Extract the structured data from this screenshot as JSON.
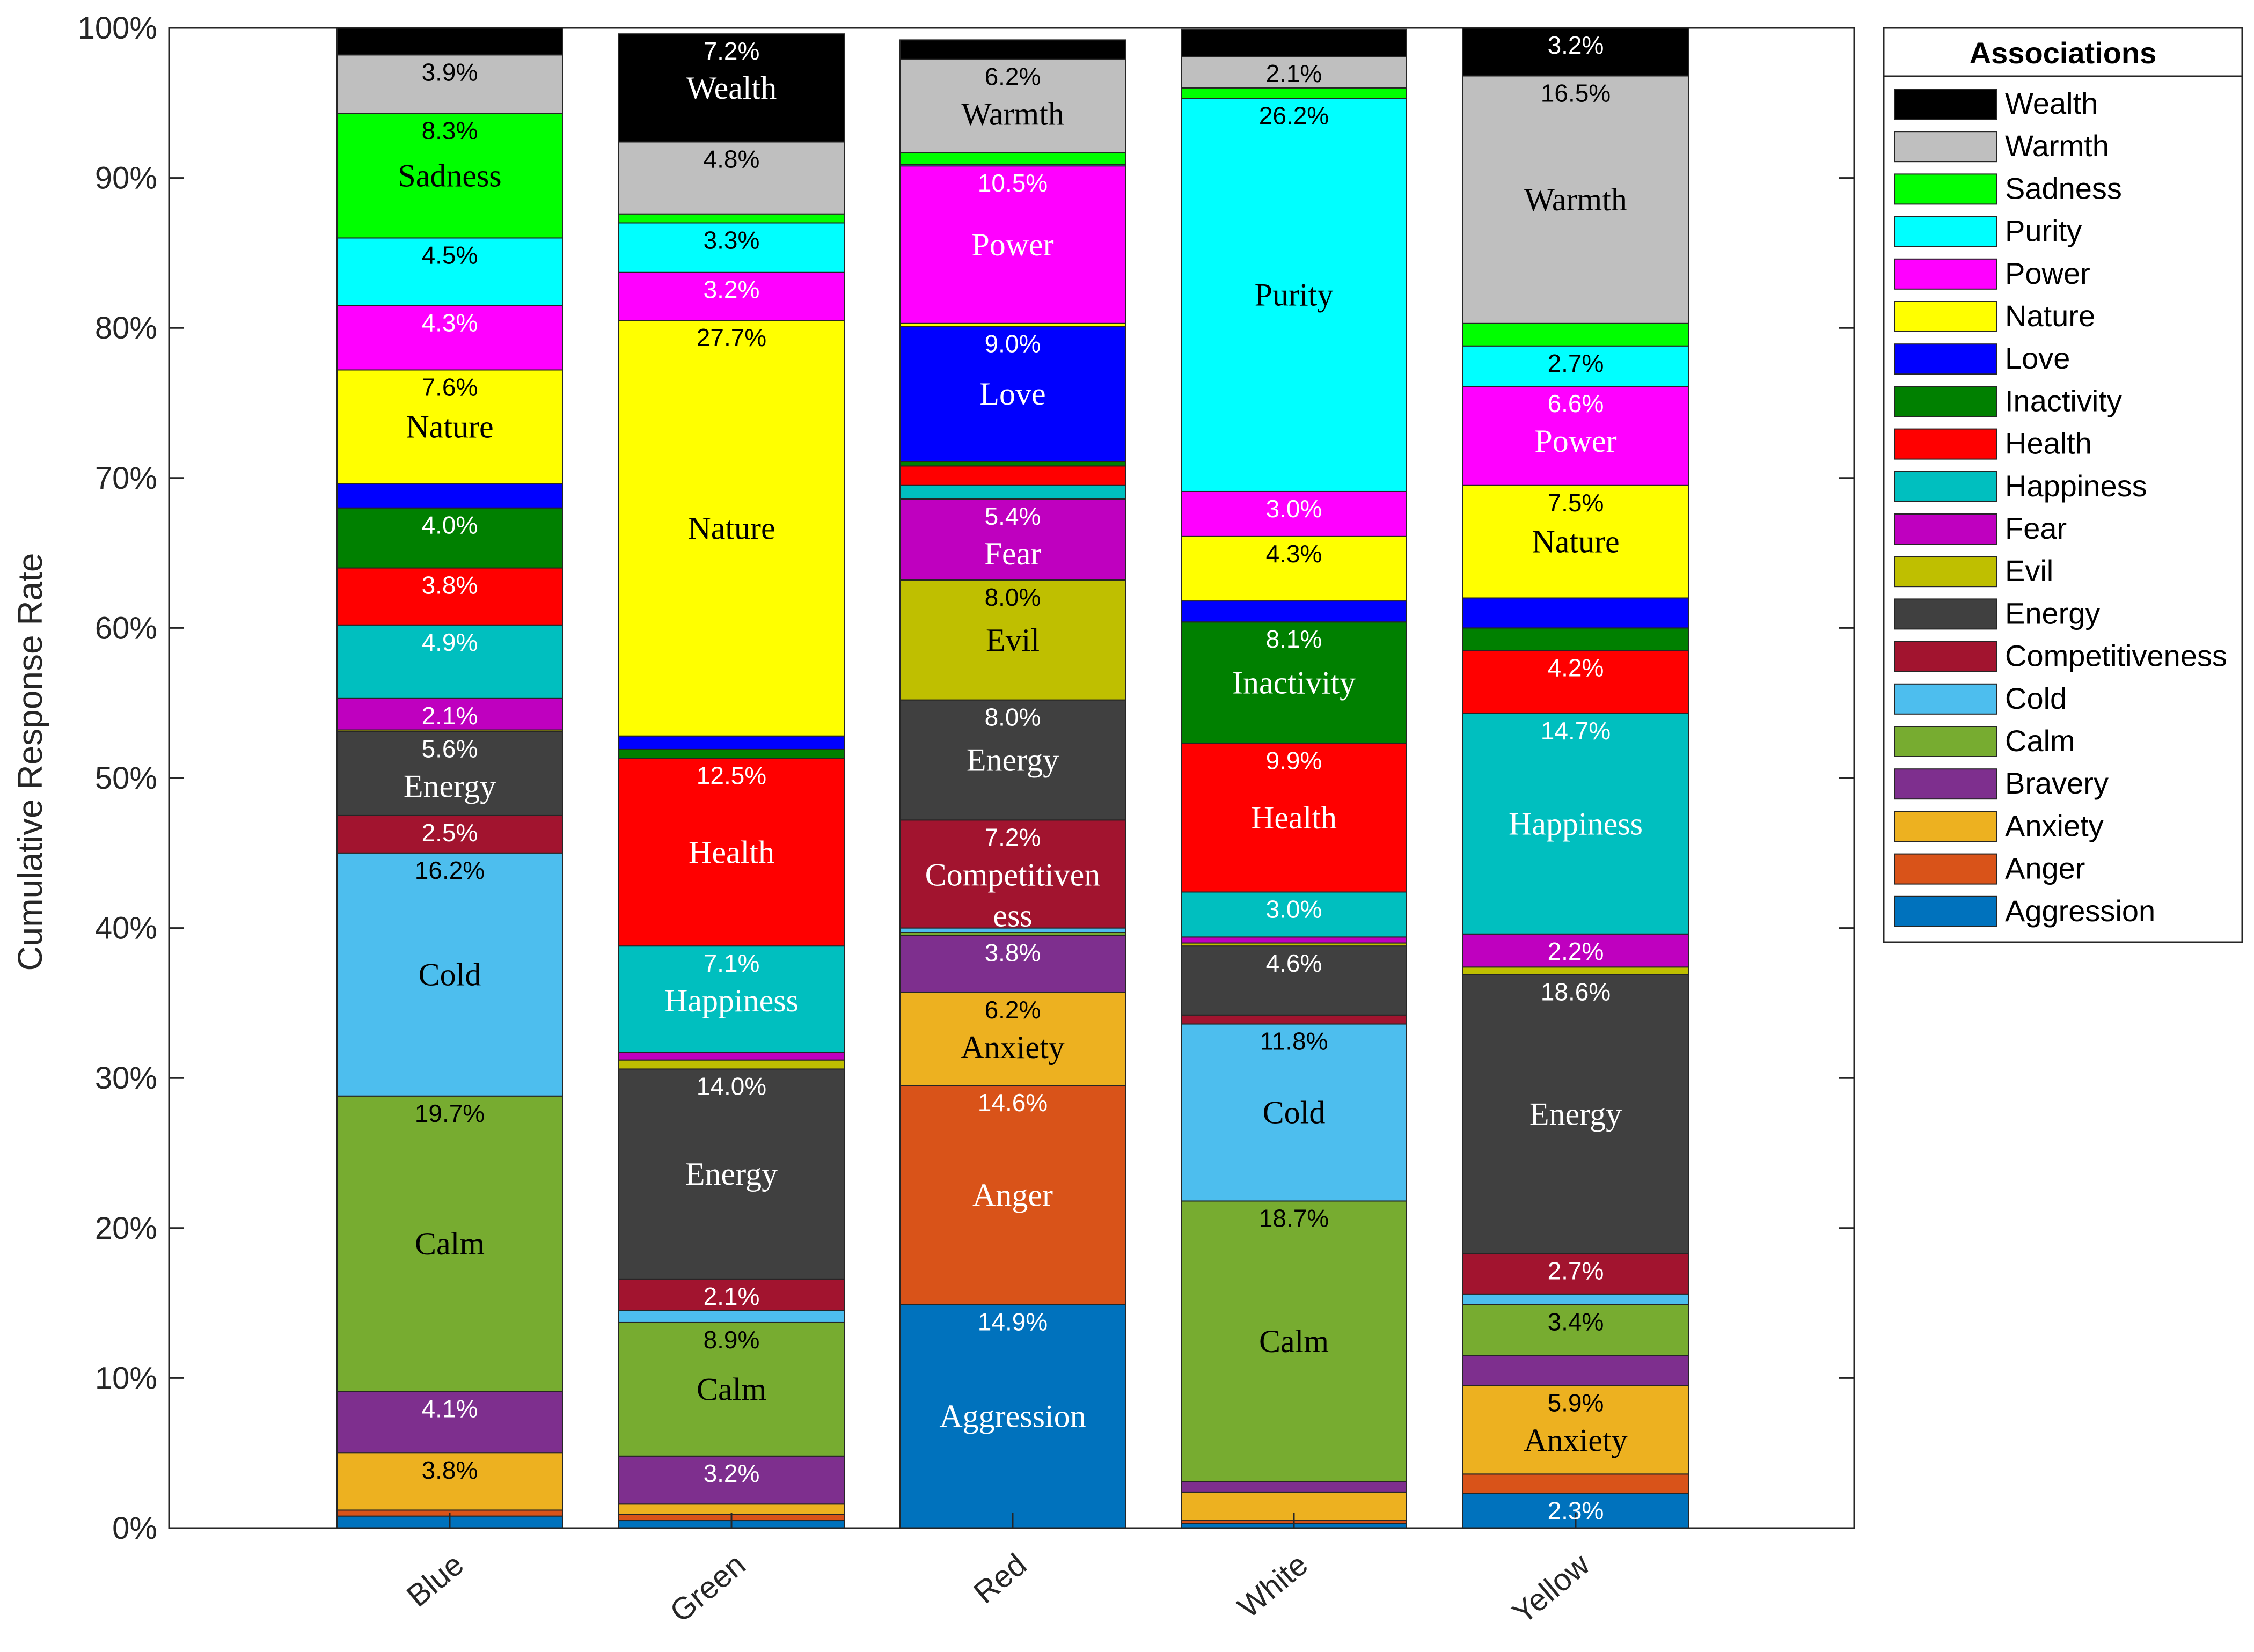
{
  "chart_data": {
    "type": "bar",
    "stacked": true,
    "title": "",
    "xlabel": "",
    "ylabel": "Cumulative Response Rate",
    "ylim": [
      0,
      100
    ],
    "yticks": [
      "0%",
      "10%",
      "20%",
      "30%",
      "40%",
      "50%",
      "60%",
      "70%",
      "80%",
      "90%",
      "100%"
    ],
    "categories": [
      "Blue",
      "Green",
      "Red",
      "White",
      "Yellow"
    ],
    "legend": {
      "title": "Associations",
      "position": "right-outside"
    },
    "grid": false,
    "series": [
      {
        "name": "Aggression",
        "color": "#0072BD",
        "values": [
          0.8,
          0.5,
          14.9,
          0.3,
          2.3
        ]
      },
      {
        "name": "Anger",
        "color": "#D95319",
        "values": [
          0.4,
          0.4,
          14.6,
          0.2,
          1.3
        ]
      },
      {
        "name": "Anxiety",
        "color": "#EDB120",
        "values": [
          3.8,
          0.7,
          6.2,
          1.9,
          5.9
        ]
      },
      {
        "name": "Bravery",
        "color": "#7E2F8E",
        "values": [
          4.1,
          3.2,
          3.8,
          0.7,
          2.0
        ]
      },
      {
        "name": "Calm",
        "color": "#77AC30",
        "values": [
          19.7,
          8.9,
          0.2,
          18.7,
          3.4
        ]
      },
      {
        "name": "Cold",
        "color": "#4DBEEE",
        "values": [
          16.2,
          0.8,
          0.3,
          11.8,
          0.7
        ]
      },
      {
        "name": "Competitiveness",
        "color": "#A2142F",
        "values": [
          2.5,
          2.1,
          7.2,
          0.6,
          2.7
        ]
      },
      {
        "name": "Energy",
        "color": "#404040",
        "values": [
          5.6,
          14.0,
          8.0,
          4.6,
          18.6
        ]
      },
      {
        "name": "Evil",
        "color": "#BFBF00",
        "values": [
          0.1,
          0.6,
          8.0,
          0.2,
          0.5
        ]
      },
      {
        "name": "Fear",
        "color": "#BF00BF",
        "values": [
          2.1,
          0.5,
          5.4,
          0.4,
          2.2
        ]
      },
      {
        "name": "Happiness",
        "color": "#00BFBF",
        "values": [
          4.9,
          7.1,
          0.9,
          3.0,
          14.7
        ]
      },
      {
        "name": "Health",
        "color": "#FF0000",
        "values": [
          3.8,
          12.5,
          1.3,
          9.9,
          4.2
        ]
      },
      {
        "name": "Inactivity",
        "color": "#008000",
        "values": [
          4.0,
          0.6,
          0.3,
          8.1,
          1.5
        ]
      },
      {
        "name": "Love",
        "color": "#0000FF",
        "values": [
          1.6,
          0.9,
          9.0,
          1.4,
          2.0
        ]
      },
      {
        "name": "Nature",
        "color": "#FFFF00",
        "values": [
          7.6,
          27.7,
          0.2,
          4.3,
          7.5
        ]
      },
      {
        "name": "Power",
        "color": "#FF00FF",
        "values": [
          4.3,
          3.2,
          10.5,
          3.0,
          6.6
        ]
      },
      {
        "name": "Purity",
        "color": "#00FFFF",
        "values": [
          4.5,
          3.3,
          0.1,
          26.2,
          2.7
        ]
      },
      {
        "name": "Sadness",
        "color": "#00FF00",
        "values": [
          8.3,
          0.6,
          0.8,
          0.7,
          1.5
        ]
      },
      {
        "name": "Warmth",
        "color": "#BFBFBF",
        "values": [
          3.9,
          4.8,
          6.2,
          2.1,
          16.5
        ]
      },
      {
        "name": "Wealth",
        "color": "#000000",
        "values": [
          1.8,
          7.2,
          1.3,
          1.8,
          3.2
        ]
      }
    ],
    "segment_labels": [
      {
        "category": "Blue",
        "series": "Wealth",
        "pct": "",
        "name": ""
      },
      {
        "category": "Blue",
        "series": "Warmth",
        "pct": "3.9%",
        "name": ""
      },
      {
        "category": "Blue",
        "series": "Sadness",
        "pct": "8.3%",
        "name": "Sadness"
      },
      {
        "category": "Blue",
        "series": "Purity",
        "pct": "4.5%",
        "name": ""
      },
      {
        "category": "Blue",
        "series": "Power",
        "pct": "4.3%",
        "name": ""
      },
      {
        "category": "Blue",
        "series": "Nature",
        "pct": "7.6%",
        "name": "Nature"
      },
      {
        "category": "Blue",
        "series": "Inactivity",
        "pct": "4.0%",
        "name": ""
      },
      {
        "category": "Blue",
        "series": "Health",
        "pct": "3.8%",
        "name": ""
      },
      {
        "category": "Blue",
        "series": "Happiness",
        "pct": "4.9%",
        "name": ""
      },
      {
        "category": "Blue",
        "series": "Fear",
        "pct": "2.1%",
        "name": ""
      },
      {
        "category": "Blue",
        "series": "Energy",
        "pct": "5.6%",
        "name": "Energy"
      },
      {
        "category": "Blue",
        "series": "Competitiveness",
        "pct": "2.5%",
        "name": ""
      },
      {
        "category": "Blue",
        "series": "Cold",
        "pct": "16.2%",
        "name": "Cold"
      },
      {
        "category": "Blue",
        "series": "Calm",
        "pct": "19.7%",
        "name": "Calm"
      },
      {
        "category": "Blue",
        "series": "Bravery",
        "pct": "4.1%",
        "name": ""
      },
      {
        "category": "Blue",
        "series": "Anxiety",
        "pct": "3.8%",
        "name": ""
      },
      {
        "category": "Green",
        "series": "Wealth",
        "pct": "7.2%",
        "name": "Wealth"
      },
      {
        "category": "Green",
        "series": "Warmth",
        "pct": "4.8%",
        "name": ""
      },
      {
        "category": "Green",
        "series": "Purity",
        "pct": "3.3%",
        "name": ""
      },
      {
        "category": "Green",
        "series": "Power",
        "pct": "3.2%",
        "name": ""
      },
      {
        "category": "Green",
        "series": "Nature",
        "pct": "27.7%",
        "name": "Nature"
      },
      {
        "category": "Green",
        "series": "Health",
        "pct": "12.5%",
        "name": "Health"
      },
      {
        "category": "Green",
        "series": "Happiness",
        "pct": "7.1%",
        "name": "Happiness"
      },
      {
        "category": "Green",
        "series": "Energy",
        "pct": "14.0%",
        "name": "Energy"
      },
      {
        "category": "Green",
        "series": "Competitiveness",
        "pct": "2.1%",
        "name": ""
      },
      {
        "category": "Green",
        "series": "Calm",
        "pct": "8.9%",
        "name": "Calm"
      },
      {
        "category": "Green",
        "series": "Bravery",
        "pct": "3.2%",
        "name": ""
      },
      {
        "category": "Red",
        "series": "Warmth",
        "pct": "6.2%",
        "name": "Warmth"
      },
      {
        "category": "Red",
        "series": "Power",
        "pct": "10.5%",
        "name": "Power"
      },
      {
        "category": "Red",
        "series": "Love",
        "pct": "9.0%",
        "name": "Love"
      },
      {
        "category": "Red",
        "series": "Fear",
        "pct": "5.4%",
        "name": "Fear"
      },
      {
        "category": "Red",
        "series": "Evil",
        "pct": "8.0%",
        "name": "Evil"
      },
      {
        "category": "Red",
        "series": "Energy",
        "pct": "8.0%",
        "name": "Energy"
      },
      {
        "category": "Red",
        "series": "Competitiveness",
        "pct": "7.2%",
        "name": "Competitiven\ness"
      },
      {
        "category": "Red",
        "series": "Bravery",
        "pct": "3.8%",
        "name": ""
      },
      {
        "category": "Red",
        "series": "Anxiety",
        "pct": "6.2%",
        "name": "Anxiety"
      },
      {
        "category": "Red",
        "series": "Anger",
        "pct": "14.6%",
        "name": "Anger"
      },
      {
        "category": "Red",
        "series": "Aggression",
        "pct": "14.9%",
        "name": "Aggression"
      },
      {
        "category": "White",
        "series": "Warmth",
        "pct": "2.1%",
        "name": ""
      },
      {
        "category": "White",
        "series": "Purity",
        "pct": "26.2%",
        "name": "Purity"
      },
      {
        "category": "White",
        "series": "Power",
        "pct": "3.0%",
        "name": ""
      },
      {
        "category": "White",
        "series": "Nature",
        "pct": "4.3%",
        "name": ""
      },
      {
        "category": "White",
        "series": "Inactivity",
        "pct": "8.1%",
        "name": "Inactivity"
      },
      {
        "category": "White",
        "series": "Health",
        "pct": "9.9%",
        "name": "Health"
      },
      {
        "category": "White",
        "series": "Happiness",
        "pct": "3.0%",
        "name": ""
      },
      {
        "category": "White",
        "series": "Energy",
        "pct": "4.6%",
        "name": ""
      },
      {
        "category": "White",
        "series": "Cold",
        "pct": "11.8%",
        "name": "Cold"
      },
      {
        "category": "White",
        "series": "Calm",
        "pct": "18.7%",
        "name": "Calm"
      },
      {
        "category": "Yellow",
        "series": "Wealth",
        "pct": "3.2%",
        "name": ""
      },
      {
        "category": "Yellow",
        "series": "Warmth",
        "pct": "16.5%",
        "name": "Warmth"
      },
      {
        "category": "Yellow",
        "series": "Purity",
        "pct": "2.7%",
        "name": ""
      },
      {
        "category": "Yellow",
        "series": "Power",
        "pct": "6.6%",
        "name": "Power"
      },
      {
        "category": "Yellow",
        "series": "Nature",
        "pct": "7.5%",
        "name": "Nature"
      },
      {
        "category": "Yellow",
        "series": "Health",
        "pct": "4.2%",
        "name": ""
      },
      {
        "category": "Yellow",
        "series": "Happiness",
        "pct": "14.7%",
        "name": "Happiness"
      },
      {
        "category": "Yellow",
        "series": "Fear",
        "pct": "2.2%",
        "name": ""
      },
      {
        "category": "Yellow",
        "series": "Energy",
        "pct": "18.6%",
        "name": "Energy"
      },
      {
        "category": "Yellow",
        "series": "Competitiveness",
        "pct": "2.7%",
        "name": ""
      },
      {
        "category": "Yellow",
        "series": "Calm",
        "pct": "3.4%",
        "name": ""
      },
      {
        "category": "Yellow",
        "series": "Anxiety",
        "pct": "5.9%",
        "name": "Anxiety"
      },
      {
        "category": "Yellow",
        "series": "Aggression",
        "pct": "2.3%",
        "name": ""
      }
    ]
  }
}
